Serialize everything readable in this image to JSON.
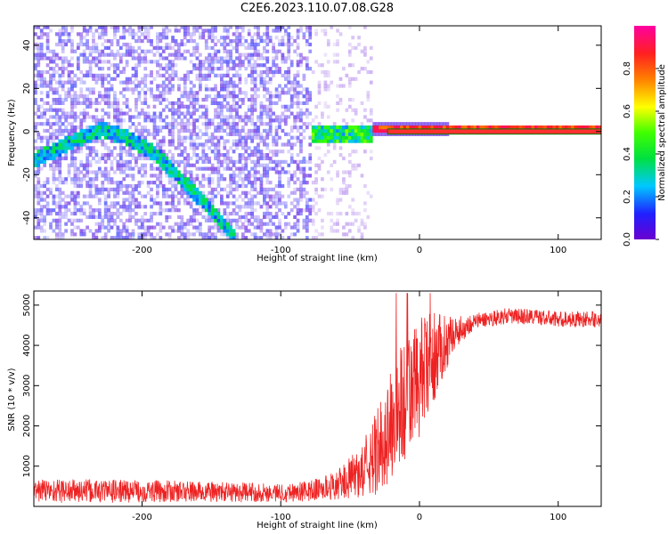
{
  "title": "C2E6.2023.110.07.08.G28",
  "chart_data": [
    {
      "type": "heatmap",
      "xlabel": "Height of straight line (km)",
      "ylabel": "Frequency (Hz)",
      "xlim": [
        -278,
        131
      ],
      "ylim": [
        -50,
        49
      ],
      "xticks": [
        -200,
        -100,
        0,
        100
      ],
      "yticks": [
        -40,
        -20,
        0,
        20,
        40
      ],
      "colorbar": {
        "label": "Normalized spectral amplitude",
        "range": [
          0,
          1
        ],
        "ticks": [
          "0.0",
          "0.2",
          "0.4",
          "0.6",
          "0.8"
        ],
        "ticks_values": [
          0.0,
          0.2,
          0.4,
          0.6,
          0.8
        ],
        "colormap": [
          "#6a00d0",
          "#2020ff",
          "#00c8ff",
          "#00e040",
          "#40ff00",
          "#ffff00",
          "#ff8000",
          "#ff2020",
          "#ff00a0"
        ]
      },
      "signal_track": {
        "description_points": [
          [
            -278,
            -14
          ],
          [
            -250,
            -5
          ],
          [
            -230,
            0
          ],
          [
            -210,
            -4
          ],
          [
            -190,
            -12
          ],
          [
            -170,
            -25
          ],
          [
            -150,
            -38
          ],
          [
            -135,
            -50
          ]
        ],
        "tone_start_km": -78,
        "tone_freq_hz": 0
      },
      "grid": false
    },
    {
      "type": "line",
      "xlabel": "Height of straight line (km)",
      "ylabel": "SNR (10 * v/v)",
      "xlim": [
        -278,
        131
      ],
      "ylim": [
        0,
        5350
      ],
      "xticks": [
        -200,
        -100,
        0,
        100
      ],
      "yticks": [
        1000,
        2000,
        3000,
        4000,
        5000
      ],
      "color": "#ee2222",
      "grid": false,
      "envelope": {
        "x": [
          -278,
          -250,
          -200,
          -150,
          -100,
          -80,
          -60,
          -45,
          -35,
          -25,
          -15,
          -5,
          5,
          15,
          25,
          40,
          60,
          80,
          100,
          131
        ],
        "y": [
          400,
          380,
          380,
          360,
          340,
          380,
          520,
          800,
          1100,
          1700,
          2400,
          2900,
          3400,
          3900,
          4300,
          4600,
          4720,
          4720,
          4650,
          4650
        ],
        "noise": [
          300,
          300,
          280,
          260,
          230,
          260,
          350,
          600,
          900,
          1300,
          1600,
          1600,
          1400,
          900,
          400,
          200,
          200,
          200,
          200,
          200
        ]
      }
    }
  ]
}
